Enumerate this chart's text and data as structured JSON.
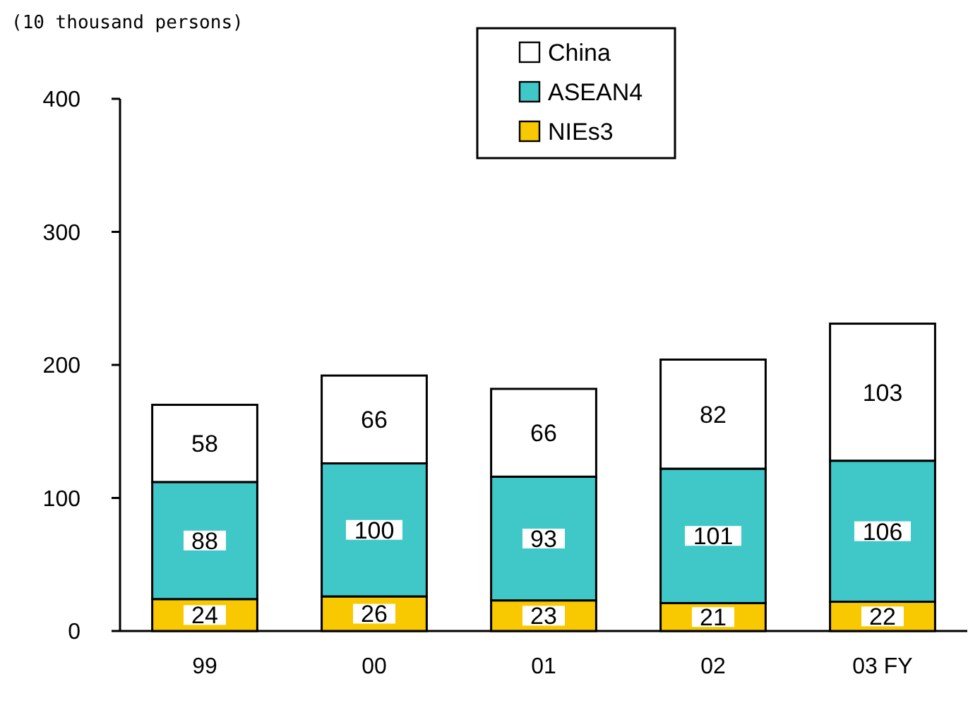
{
  "chart_data": {
    "type": "bar",
    "stacked": true,
    "ylabel": "(10 thousand persons)",
    "categories": [
      "99",
      "00",
      "01",
      "02",
      "03 FY"
    ],
    "series": [
      {
        "name": "NIEs3",
        "color": "#f8c800",
        "values": [
          24,
          26,
          23,
          21,
          22
        ]
      },
      {
        "name": "ASEAN4",
        "color": "#40c8c8",
        "values": [
          88,
          100,
          93,
          101,
          106
        ]
      },
      {
        "name": "China",
        "color": "#ffffff",
        "values": [
          58,
          66,
          66,
          82,
          103
        ]
      }
    ],
    "ylim": [
      0,
      400
    ],
    "yticks": [
      0,
      100,
      200,
      300,
      400
    ],
    "grid": false,
    "legend": "top",
    "data_labels": true
  }
}
